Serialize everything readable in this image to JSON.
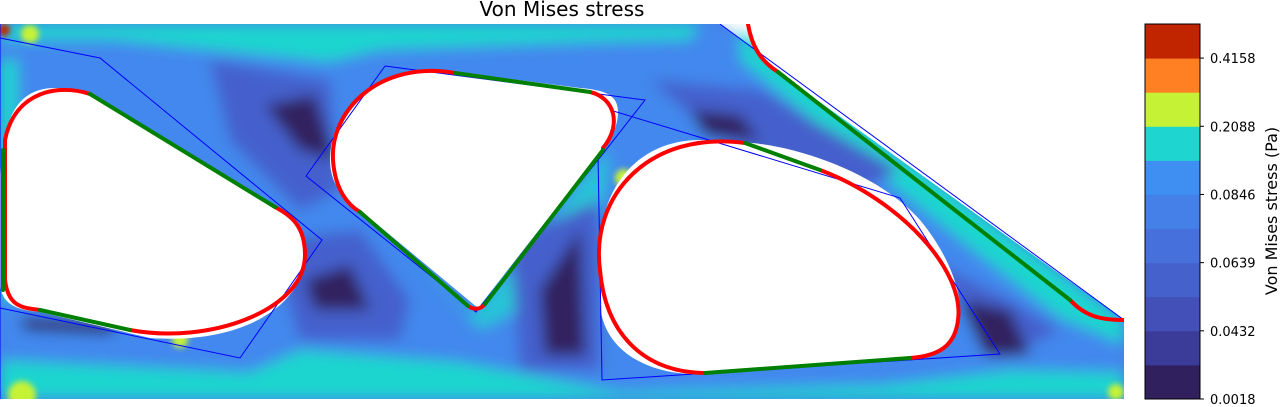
{
  "chart_data": {
    "type": "heatmap",
    "title": "Von Mises stress",
    "colorbar": {
      "label": "Von Mises stress (Pa)",
      "levels": [
        {
          "value": 0.0018,
          "color": "#30215e"
        },
        {
          "value": 0.0225,
          "color": "#3b3b99"
        },
        {
          "value": 0.0432,
          "color": "#4250b7"
        },
        {
          "value": 0.0535,
          "color": "#4461cc"
        },
        {
          "value": 0.0639,
          "color": "#4670db"
        },
        {
          "value": 0.0742,
          "color": "#4580e8"
        },
        {
          "value": 0.0846,
          "color": "#3f8ef2"
        },
        {
          "value": 0.1467,
          "color": "#1fd5cf"
        },
        {
          "value": 0.2088,
          "color": "#c6f235"
        },
        {
          "value": 0.3123,
          "color": "#ff8023"
        },
        {
          "value": 0.4158,
          "color": "#c02500"
        },
        {
          "value": 0.5193,
          "color": ""
        }
      ],
      "tick_labels": [
        "0.0018",
        "0.0432",
        "0.0639",
        "0.0846",
        "0.2088",
        "0.4158"
      ]
    },
    "legend": "none",
    "grid": false,
    "axes_visible": false
  },
  "colors": {
    "background_field": "#3f8ef2",
    "high_band": "#1fd5cf",
    "low_band": "#30215e",
    "boundary_red": "#ff0000",
    "boundary_green": "#008000",
    "outline_blue": "#0000ff"
  }
}
